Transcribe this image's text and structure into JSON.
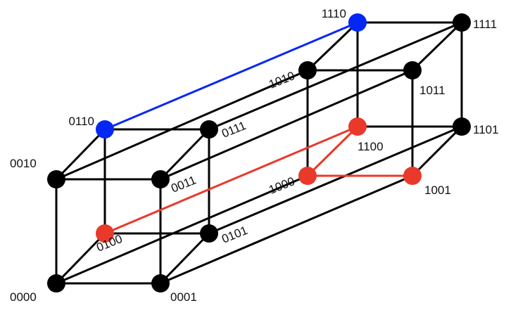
{
  "diagram": {
    "nodes": [
      {
        "id": "0000",
        "label": "0000",
        "color": "#000000"
      },
      {
        "id": "0001",
        "label": "0001",
        "color": "#000000"
      },
      {
        "id": "0010",
        "label": "0010",
        "color": "#000000"
      },
      {
        "id": "0011",
        "label": "0011",
        "color": "#000000"
      },
      {
        "id": "0100",
        "label": "0100",
        "color": "#e8392a"
      },
      {
        "id": "0101",
        "label": "0101",
        "color": "#000000"
      },
      {
        "id": "0110",
        "label": "0110",
        "color": "#0527f5"
      },
      {
        "id": "0111",
        "label": "0111",
        "color": "#000000"
      },
      {
        "id": "1000",
        "label": "1000",
        "color": "#e8392a"
      },
      {
        "id": "1001",
        "label": "1001",
        "color": "#e8392a"
      },
      {
        "id": "1010",
        "label": "1010",
        "color": "#000000"
      },
      {
        "id": "1011",
        "label": "1011",
        "color": "#000000"
      },
      {
        "id": "1100",
        "label": "1100",
        "color": "#e8392a"
      },
      {
        "id": "1101",
        "label": "1101",
        "color": "#000000"
      },
      {
        "id": "1110",
        "label": "1110",
        "color": "#0527f5"
      },
      {
        "id": "1111",
        "label": "1111",
        "color": "#000000"
      }
    ],
    "highlighted_edges": [
      {
        "from": "0110",
        "to": "1110",
        "color": "#0527f5"
      },
      {
        "from": "0100",
        "to": "1100",
        "color": "#e8392a"
      },
      {
        "from": "1100",
        "to": "1000",
        "color": "#e8392a"
      },
      {
        "from": "1000",
        "to": "1001",
        "color": "#e8392a"
      }
    ],
    "default_edge_color": "#000000"
  }
}
